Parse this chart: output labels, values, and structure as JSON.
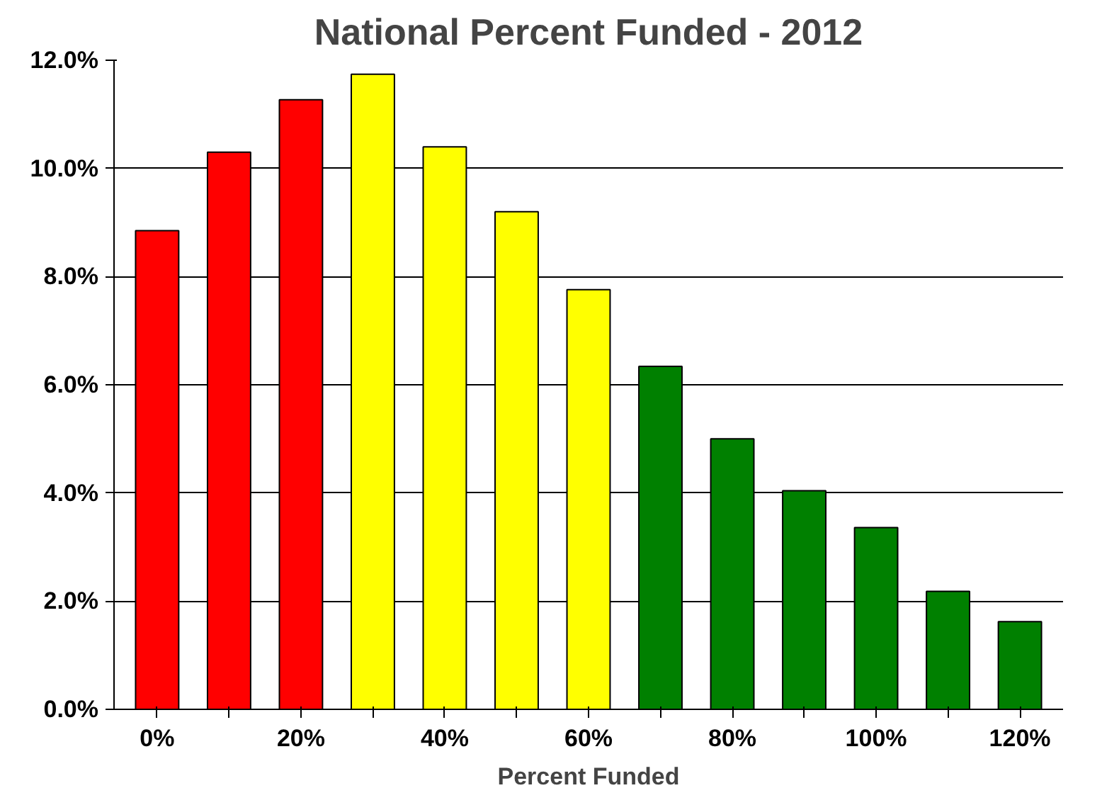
{
  "chart_data": {
    "type": "bar",
    "title": "National Percent Funded - 2012",
    "xlabel": "Percent Funded",
    "categories": [
      "0%",
      null,
      "20%",
      null,
      "40%",
      null,
      "60%",
      null,
      "80%",
      null,
      "100%",
      null,
      "120%"
    ],
    "values": [
      8.85,
      10.3,
      11.27,
      11.74,
      10.4,
      9.2,
      7.76,
      6.34,
      5.0,
      4.04,
      3.36,
      2.18,
      1.62
    ],
    "colors": [
      "#ff0000",
      "#ff0000",
      "#ff0000",
      "#ffff00",
      "#ffff00",
      "#ffff00",
      "#ffff00",
      "#008000",
      "#008000",
      "#008000",
      "#008000",
      "#008000",
      "#008000"
    ],
    "ylim": [
      0,
      12
    ],
    "yticks": [
      {
        "value": 0,
        "label": "0.0%"
      },
      {
        "value": 2,
        "label": "2.0%"
      },
      {
        "value": 4,
        "label": "4.0%"
      },
      {
        "value": 6,
        "label": "6.0%"
      },
      {
        "value": 8,
        "label": "8.0%"
      },
      {
        "value": 10,
        "label": "10.0%"
      },
      {
        "value": 12,
        "label": "12.0%"
      }
    ],
    "grid": "y"
  }
}
